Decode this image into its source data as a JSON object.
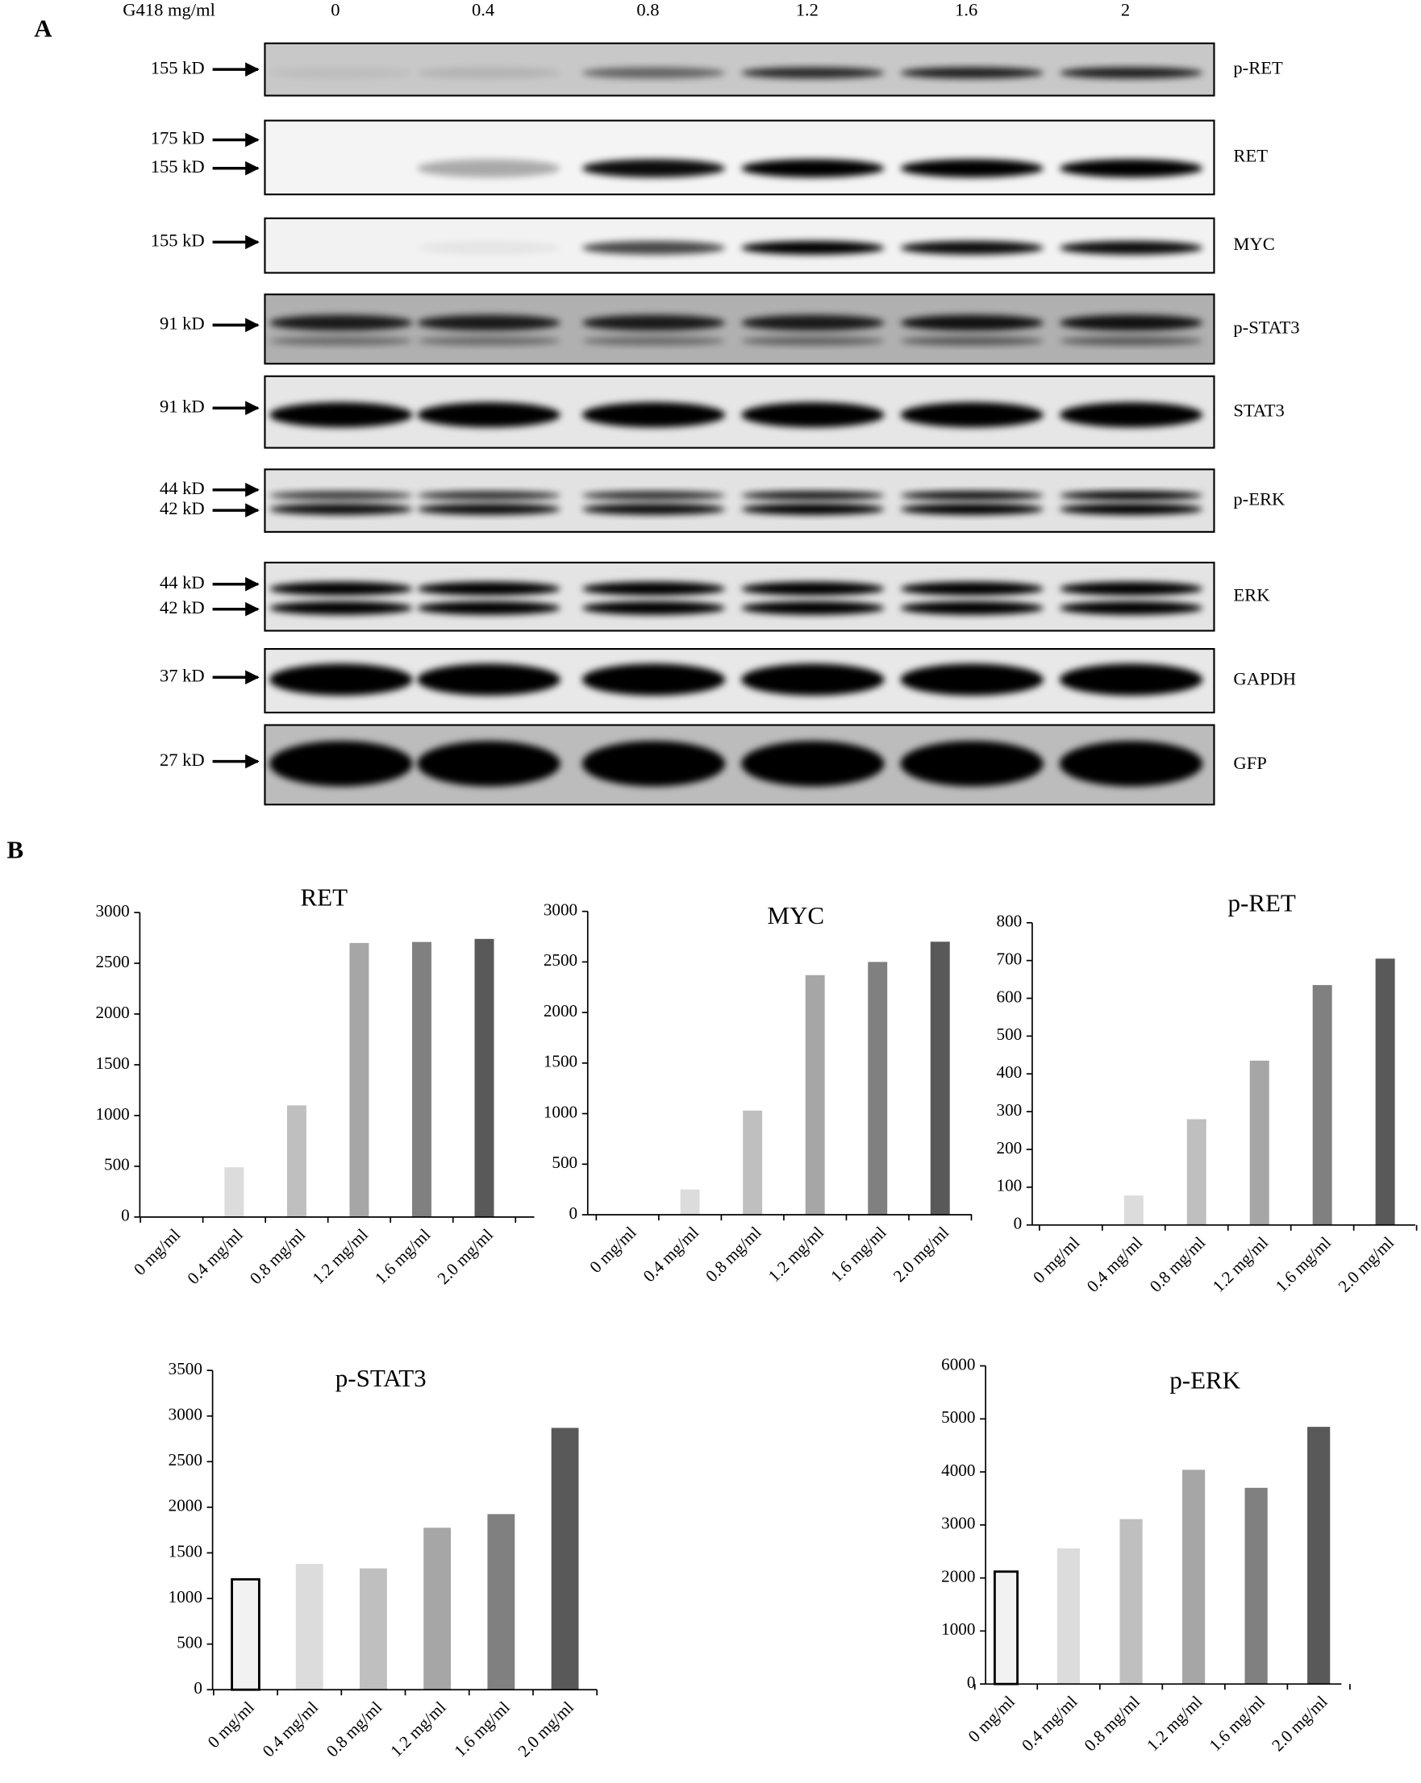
{
  "panel_labels": [
    "A",
    "B"
  ],
  "blot": {
    "header": "G418 mg/ml",
    "lanes": [
      "0",
      "0.4",
      "0.8",
      "1.2",
      "1.6",
      "2"
    ],
    "rows": [
      {
        "protein": "p-RET",
        "markers": [
          "155 kD"
        ]
      },
      {
        "protein": "RET",
        "markers": [
          "175 kD",
          "155 kD"
        ]
      },
      {
        "protein": "MYC",
        "markers": [
          "155 kD"
        ]
      },
      {
        "protein": "p-STAT3",
        "markers": [
          "91 kD"
        ]
      },
      {
        "protein": "STAT3",
        "markers": [
          "91 kD"
        ]
      },
      {
        "protein": "p-ERK",
        "markers": [
          "44 kD",
          "42 kD"
        ]
      },
      {
        "protein": "ERK",
        "markers": [
          "44 kD",
          "42 kD"
        ]
      },
      {
        "protein": "GAPDH",
        "markers": [
          "37 kD"
        ]
      },
      {
        "protein": "GFP",
        "markers": [
          "27 kD"
        ]
      }
    ]
  },
  "chart_data": [
    {
      "type": "bar",
      "title": "RET",
      "categories": [
        "0 mg/ml",
        "0.4 mg/ml",
        "0.8 mg/ml",
        "1.2 mg/ml",
        "1.6 mg/ml",
        "2.0 mg/ml"
      ],
      "values": [
        0,
        490,
        1100,
        2700,
        2710,
        2740
      ],
      "colors": [
        "#f2f2f2",
        "#dcdcdc",
        "#bfbfbf",
        "#a6a6a6",
        "#808080",
        "#595959"
      ],
      "edgecolors": [
        "#000000",
        null,
        null,
        null,
        null,
        null
      ],
      "ylim": [
        0,
        3000
      ],
      "yticks": [
        0,
        500,
        1000,
        1500,
        2000,
        2500,
        3000
      ]
    },
    {
      "type": "bar",
      "title": "MYC",
      "categories": [
        "0 mg/ml",
        "0.4 mg/ml",
        "0.8 mg/ml",
        "1.2 mg/ml",
        "1.6 mg/ml",
        "2.0 mg/ml"
      ],
      "values": [
        0,
        250,
        1030,
        2370,
        2500,
        2700
      ],
      "colors": [
        "#f2f2f2",
        "#dcdcdc",
        "#bfbfbf",
        "#a6a6a6",
        "#808080",
        "#595959"
      ],
      "edgecolors": [
        "#000000",
        null,
        null,
        null,
        null,
        null
      ],
      "ylim": [
        0,
        3000
      ],
      "yticks": [
        0,
        500,
        1000,
        1500,
        2000,
        2500,
        3000
      ]
    },
    {
      "type": "bar",
      "title": "p-RET",
      "categories": [
        "0 mg/ml",
        "0.4 mg/ml",
        "0.8 mg/ml",
        "1.2 mg/ml",
        "1.6 mg/ml",
        "2.0 mg/ml"
      ],
      "values": [
        0,
        78,
        280,
        435,
        635,
        705
      ],
      "colors": [
        "#f2f2f2",
        "#dcdcdc",
        "#bfbfbf",
        "#a6a6a6",
        "#808080",
        "#595959"
      ],
      "edgecolors": [
        "#000000",
        null,
        null,
        null,
        null,
        null
      ],
      "ylim": [
        0,
        800
      ],
      "yticks": [
        0,
        100,
        200,
        300,
        400,
        500,
        600,
        700,
        800
      ]
    },
    {
      "type": "bar",
      "title": "p-STAT3",
      "categories": [
        "0 mg/ml",
        "0.4 mg/ml",
        "0.8 mg/ml",
        "1.2 mg/ml",
        "1.6 mg/ml",
        "2.0 mg/ml"
      ],
      "values": [
        1210,
        1380,
        1330,
        1775,
        1925,
        2870
      ],
      "colors": [
        "#f2f2f2",
        "#dcdcdc",
        "#bfbfbf",
        "#a6a6a6",
        "#808080",
        "#595959"
      ],
      "edgecolors": [
        "#000000",
        null,
        null,
        null,
        null,
        null
      ],
      "ylim": [
        0,
        3500
      ],
      "yticks": [
        0,
        500,
        1000,
        1500,
        2000,
        2500,
        3000,
        3500
      ]
    },
    {
      "type": "bar",
      "title": "p-ERK",
      "categories": [
        "0 mg/ml",
        "0.4 mg/ml",
        "0.8 mg/ml",
        "1.2 mg/ml",
        "1.6 mg/ml",
        "2.0 mg/ml"
      ],
      "values": [
        2120,
        2560,
        3110,
        4040,
        3700,
        4850
      ],
      "colors": [
        "#f2f2f2",
        "#dcdcdc",
        "#bfbfbf",
        "#a6a6a6",
        "#808080",
        "#595959"
      ],
      "edgecolors": [
        "#000000",
        null,
        null,
        null,
        null,
        null
      ],
      "ylim": [
        0,
        6000
      ],
      "yticks": [
        0,
        1000,
        2000,
        3000,
        4000,
        5000,
        6000
      ]
    }
  ]
}
